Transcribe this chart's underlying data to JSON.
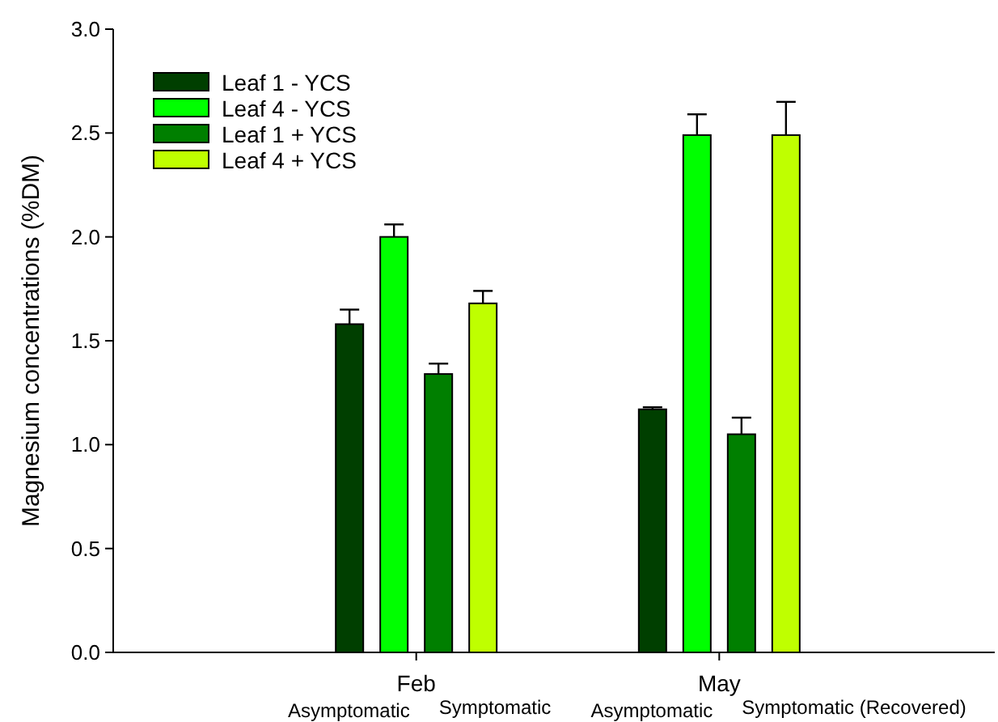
{
  "chart_data": {
    "type": "bar",
    "ylabel": "Magnesium concentrations (%DM)",
    "categories": [
      "Feb",
      "May"
    ],
    "series": [
      {
        "name": "Leaf 1 - YCS",
        "color": "#003f00",
        "values": [
          1.58,
          1.17
        ],
        "errors": [
          0.07,
          0.01
        ]
      },
      {
        "name": "Leaf 4 - YCS",
        "color": "#00ff00",
        "values": [
          2.0,
          2.49
        ],
        "errors": [
          0.06,
          0.1
        ]
      },
      {
        "name": "Leaf 1 + YCS",
        "color": "#007f00",
        "values": [
          1.34,
          1.05
        ],
        "errors": [
          0.05,
          0.08
        ]
      },
      {
        "name": "Leaf 4 + YCS",
        "color": "#bfff00",
        "values": [
          1.68,
          2.49
        ],
        "errors": [
          0.06,
          0.16
        ]
      }
    ],
    "ylim": [
      0,
      3
    ],
    "yticks": [
      {
        "value": 0,
        "label": "0.0"
      },
      {
        "value": 0.5,
        "label": "0.5"
      },
      {
        "value": 1,
        "label": "1.0"
      },
      {
        "value": 1.5,
        "label": "1.5"
      },
      {
        "value": 2,
        "label": "2.0"
      },
      {
        "value": 2.5,
        "label": "2.5"
      },
      {
        "value": 3,
        "label": "3.0"
      }
    ],
    "annotations": [
      "Asymptomatic",
      "Symptomatic",
      "Asymptomatic",
      "Symptomatic (Recovered)"
    ],
    "legend": "top left"
  }
}
